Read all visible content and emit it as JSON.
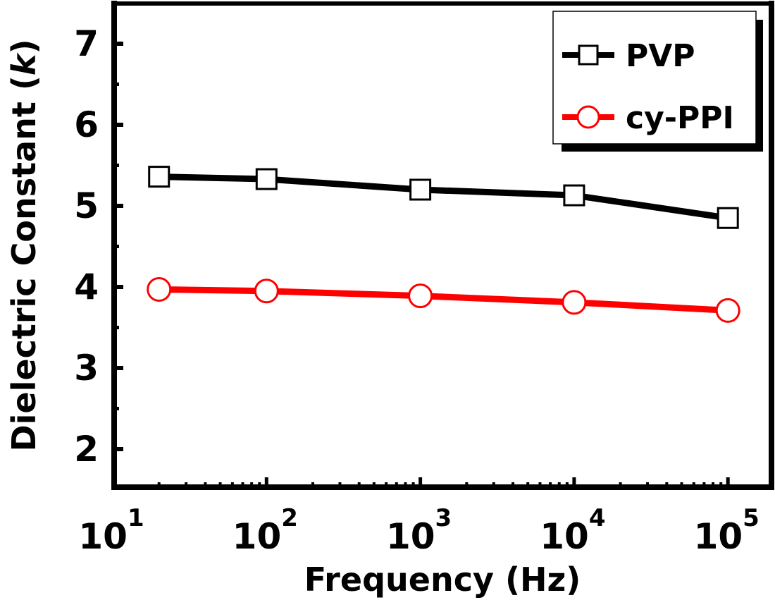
{
  "chart_data": {
    "type": "line",
    "title": "",
    "xlabel": "Frequency (Hz)",
    "ylabel": "Dielectric Constant (k)",
    "ylabel_parts": {
      "prefix": "Dielectric Constant (",
      "italic": "k",
      "suffix": ")"
    },
    "xscale": "log",
    "xlim": [
      10,
      100000
    ],
    "ylim": [
      1.5,
      7.5
    ],
    "x_ticks": [
      {
        "value": 10,
        "base": "10",
        "exp": "1"
      },
      {
        "value": 100,
        "base": "10",
        "exp": "2"
      },
      {
        "value": 1000,
        "base": "10",
        "exp": "3"
      },
      {
        "value": 10000,
        "base": "10",
        "exp": "4"
      },
      {
        "value": 100000,
        "base": "10",
        "exp": "5"
      }
    ],
    "y_ticks": [
      "2",
      "3",
      "4",
      "5",
      "6",
      "7"
    ],
    "grid": false,
    "legend_position": "top-right",
    "x": [
      20,
      100,
      1000,
      10000,
      100000
    ],
    "series": [
      {
        "name": "PVP",
        "marker": "square",
        "color": "#000000",
        "values": [
          5.36,
          5.33,
          5.2,
          5.13,
          4.85
        ]
      },
      {
        "name": "cy-PPI",
        "marker": "circle",
        "color": "#ff0000",
        "values": [
          3.97,
          3.95,
          3.89,
          3.81,
          3.71
        ]
      }
    ]
  }
}
